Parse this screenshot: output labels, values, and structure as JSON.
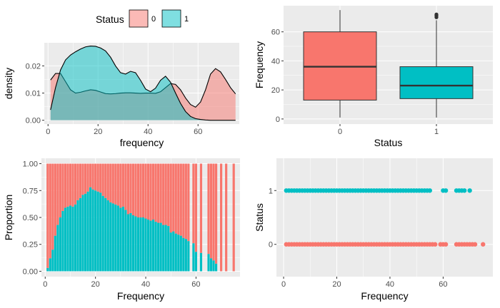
{
  "colors": {
    "c0": "#F8766D",
    "c1": "#00BFC4",
    "panel": "#EBEBEB",
    "grid": "#FFFFFF"
  },
  "chart_data": [
    {
      "id": "density",
      "type": "area",
      "xlabel": "frequency",
      "ylabel": "density",
      "xlim": [
        -1.5,
        76.5
      ],
      "ylim": [
        -0.0014,
        0.0285
      ],
      "xticks": [
        0,
        20,
        40,
        60
      ],
      "xtick_labels": [
        "0",
        "20",
        "40",
        "60"
      ],
      "yticks": [
        0,
        0.01,
        0.02
      ],
      "ytick_labels": [
        "0.00",
        "0.01",
        "0.02"
      ],
      "legend": {
        "title": "Status",
        "position": "top",
        "entries": [
          "0",
          "1"
        ]
      },
      "series": [
        {
          "name": "0",
          "x": [
            1,
            3,
            5,
            7,
            9,
            11,
            13,
            15,
            17,
            19,
            21,
            23,
            25,
            27,
            29,
            31,
            33,
            35,
            37,
            39,
            41,
            43,
            45,
            47,
            49,
            51,
            53,
            55,
            57,
            59,
            61,
            63,
            65,
            67,
            69,
            71,
            73,
            75
          ],
          "y": [
            0.0148,
            0.0172,
            0.0172,
            0.0142,
            0.0112,
            0.01,
            0.0103,
            0.0108,
            0.0112,
            0.011,
            0.0104,
            0.0098,
            0.0097,
            0.0098,
            0.01,
            0.0101,
            0.0101,
            0.01,
            0.0099,
            0.01,
            0.01,
            0.0099,
            0.0105,
            0.012,
            0.0135,
            0.0132,
            0.0112,
            0.0082,
            0.0058,
            0.0048,
            0.0067,
            0.0112,
            0.017,
            0.019,
            0.0178,
            0.015,
            0.012,
            0.0097
          ]
        },
        {
          "name": "1",
          "x": [
            1,
            3,
            5,
            7,
            9,
            11,
            13,
            15,
            17,
            19,
            21,
            23,
            25,
            27,
            29,
            31,
            33,
            35,
            37,
            39,
            41,
            43,
            45,
            47,
            49,
            51,
            53,
            55,
            57,
            59,
            61,
            63,
            65,
            67,
            69,
            71,
            73,
            75
          ],
          "y": [
            0.0038,
            0.012,
            0.0185,
            0.0222,
            0.024,
            0.0252,
            0.0262,
            0.027,
            0.0273,
            0.0272,
            0.0266,
            0.0255,
            0.0232,
            0.02,
            0.0175,
            0.017,
            0.018,
            0.0175,
            0.0147,
            0.0115,
            0.0105,
            0.0118,
            0.0147,
            0.0162,
            0.014,
            0.01,
            0.0062,
            0.0032,
            0.0014,
            0.0006,
            0.0003,
            0.0001,
            0,
            0,
            0,
            0,
            0,
            0
          ]
        }
      ]
    },
    {
      "id": "box",
      "type": "box",
      "xlabel": "Status",
      "ylabel": "Frequency",
      "categories": [
        "0",
        "1"
      ],
      "ylim": [
        -3.5,
        78
      ],
      "yticks": [
        0,
        20,
        40,
        60
      ],
      "ytick_labels": [
        "0",
        "20",
        "40",
        "60"
      ],
      "boxes": [
        {
          "name": "0",
          "min": 1,
          "q1": 13,
          "median": 36,
          "q3": 60,
          "max": 75,
          "outliers": []
        },
        {
          "name": "1",
          "min": 1,
          "q1": 14,
          "median": 23,
          "q3": 36,
          "max": 68,
          "outliers": [
            70,
            71,
            71.5,
            72
          ]
        }
      ]
    },
    {
      "id": "proportion",
      "type": "bar",
      "stacked": true,
      "xlabel": "Frequency",
      "ylabel": "Proportion",
      "xlim": [
        -1.5,
        77.5
      ],
      "ylim": [
        -0.05,
        1.05
      ],
      "xticks": [
        0,
        20,
        40,
        60
      ],
      "xtick_labels": [
        "0",
        "20",
        "40",
        "60"
      ],
      "yticks": [
        0,
        0.25,
        0.5,
        0.75,
        1
      ],
      "ytick_labels": [
        "0.00",
        "0.25",
        "0.50",
        "0.75",
        "1.00"
      ],
      "x": [
        1,
        2,
        3,
        4,
        5,
        6,
        7,
        8,
        9,
        10,
        11,
        12,
        13,
        14,
        15,
        16,
        17,
        18,
        19,
        20,
        21,
        22,
        23,
        24,
        25,
        26,
        27,
        28,
        29,
        30,
        31,
        32,
        33,
        34,
        35,
        36,
        37,
        38,
        39,
        40,
        41,
        42,
        43,
        44,
        45,
        46,
        47,
        48,
        49,
        50,
        51,
        52,
        53,
        54,
        55,
        56,
        57,
        59,
        60,
        62,
        65,
        66,
        67,
        68,
        70,
        72,
        75
      ],
      "series": [
        {
          "name": "1",
          "values": [
            0.03,
            0.12,
            0.2,
            0.33,
            0.43,
            0.5,
            0.56,
            0.59,
            0.6,
            0.61,
            0.6,
            0.62,
            0.66,
            0.68,
            0.71,
            0.72,
            0.74,
            0.78,
            0.76,
            0.75,
            0.74,
            0.73,
            0.7,
            0.68,
            0.66,
            0.64,
            0.63,
            0.62,
            0.61,
            0.59,
            0.6,
            0.57,
            0.53,
            0.54,
            0.52,
            0.51,
            0.5,
            0.5,
            0.5,
            0.49,
            0.48,
            0.47,
            0.48,
            0.46,
            0.45,
            0.45,
            0.43,
            0.43,
            0.42,
            0.36,
            0.37,
            0.35,
            0.34,
            0.33,
            0.31,
            0.3,
            0.28,
            0.26,
            0.18,
            0.17,
            0.16,
            0.12,
            0.1,
            0.07,
            0,
            0,
            0
          ]
        },
        {
          "name": "0",
          "values": [
            0.97,
            0.88,
            0.8,
            0.67,
            0.57,
            0.5,
            0.44,
            0.41,
            0.4,
            0.39,
            0.4,
            0.38,
            0.34,
            0.32,
            0.29,
            0.28,
            0.26,
            0.22,
            0.24,
            0.25,
            0.26,
            0.27,
            0.3,
            0.32,
            0.34,
            0.36,
            0.37,
            0.38,
            0.39,
            0.41,
            0.4,
            0.43,
            0.47,
            0.46,
            0.48,
            0.49,
            0.5,
            0.5,
            0.5,
            0.51,
            0.52,
            0.53,
            0.52,
            0.54,
            0.55,
            0.55,
            0.57,
            0.57,
            0.58,
            0.64,
            0.63,
            0.65,
            0.66,
            0.67,
            0.69,
            0.7,
            0.72,
            0.74,
            0.82,
            0.83,
            0.84,
            0.88,
            0.9,
            0.93,
            1,
            1,
            1
          ]
        }
      ]
    },
    {
      "id": "scatter",
      "type": "scatter",
      "xlabel": "Frequency",
      "ylabel": "Status",
      "xlim": [
        -2.7,
        78.7
      ],
      "ylim": [
        -0.6,
        1.6
      ],
      "xticks": [
        0,
        20,
        40,
        60
      ],
      "xtick_labels": [
        "0",
        "20",
        "40",
        "60"
      ],
      "yticks": [
        0,
        1
      ],
      "ytick_labels": [
        "0",
        "1"
      ],
      "series": [
        {
          "name": "1",
          "y": 1,
          "x": [
            1,
            2,
            3,
            4,
            5,
            6,
            7,
            8,
            9,
            10,
            11,
            12,
            13,
            14,
            15,
            16,
            17,
            18,
            19,
            20,
            21,
            22,
            23,
            24,
            25,
            26,
            27,
            28,
            29,
            30,
            31,
            32,
            33,
            34,
            35,
            36,
            37,
            38,
            39,
            40,
            41,
            42,
            43,
            44,
            45,
            46,
            47,
            48,
            49,
            50,
            51,
            52,
            53,
            54,
            55,
            60,
            61,
            65,
            66,
            67,
            68,
            70
          ]
        },
        {
          "name": "0",
          "y": 0,
          "x": [
            1,
            2,
            3,
            4,
            5,
            6,
            7,
            8,
            9,
            10,
            11,
            12,
            13,
            14,
            15,
            16,
            17,
            18,
            19,
            20,
            21,
            22,
            23,
            24,
            25,
            26,
            27,
            28,
            29,
            30,
            31,
            32,
            33,
            34,
            35,
            36,
            37,
            38,
            39,
            40,
            41,
            42,
            43,
            44,
            45,
            46,
            47,
            48,
            49,
            50,
            51,
            52,
            53,
            54,
            55,
            56,
            57,
            59,
            60,
            61,
            65,
            66,
            67,
            68,
            69,
            70,
            71,
            72,
            75
          ]
        }
      ]
    }
  ]
}
